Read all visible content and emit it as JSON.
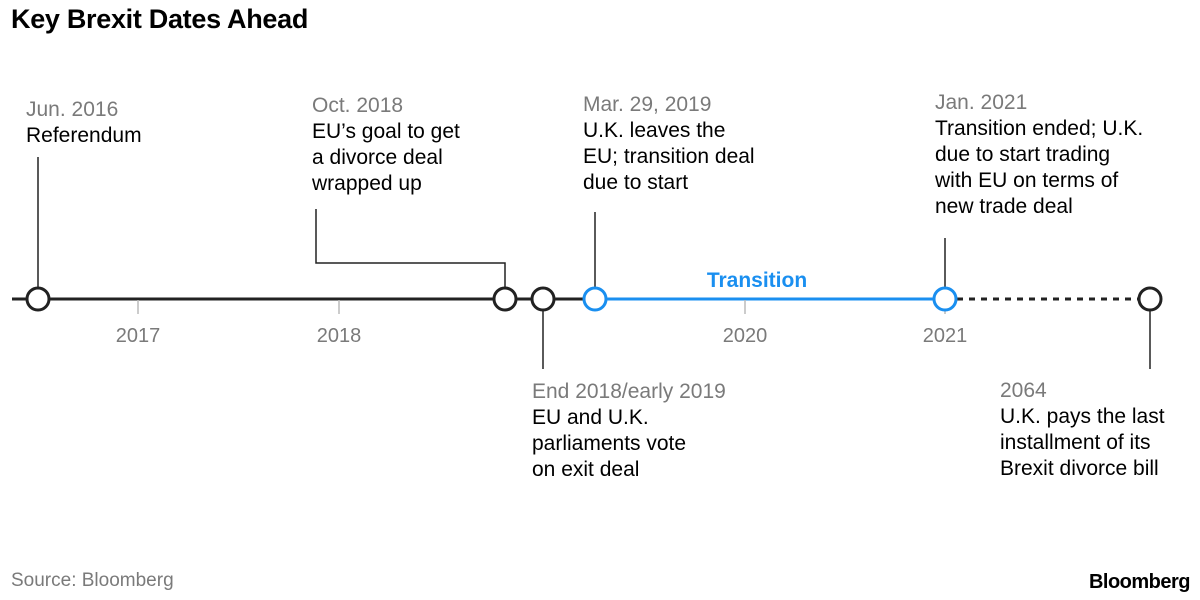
{
  "title": "Key Brexit Dates Ahead",
  "source": "Source: Bloomberg",
  "logo_text": "Bloomberg",
  "colors": {
    "timeline": "#222222",
    "transition": "#1a8ff0",
    "muted_text": "#7a7a7a",
    "tick": "#bbbbbb"
  },
  "year_labels": [
    "2017",
    "2018",
    "2020",
    "2021"
  ],
  "transition_label": "Transition",
  "events": [
    {
      "date": "Jun. 2016",
      "desc": [
        "Referendum"
      ]
    },
    {
      "date": "Oct. 2018",
      "desc": [
        "EU’s goal to get",
        "a divorce deal",
        "wrapped up"
      ]
    },
    {
      "date": "End 2018/early 2019",
      "desc": [
        "EU and U.K.",
        "parliaments vote",
        "on exit deal"
      ]
    },
    {
      "date": "Mar. 29, 2019",
      "desc": [
        "U.K. leaves the",
        "EU; transition deal",
        "due to start"
      ]
    },
    {
      "date": "Jan. 2021",
      "desc": [
        "Transition ended; U.K.",
        "due to start trading",
        "with EU on terms of",
        "new trade deal"
      ]
    },
    {
      "date": "2064",
      "desc": [
        "U.K. pays the last",
        "installment of its",
        "Brexit divorce bill"
      ]
    }
  ]
}
